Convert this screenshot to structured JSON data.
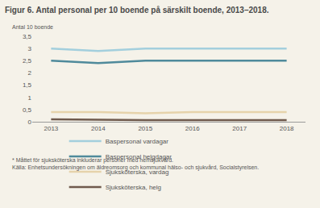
{
  "chart_data": {
    "type": "line",
    "title": "Figur 6. Antal personal per 10 boende på särskilt boende, 2013–2018.",
    "subtitle": "Antal 10 boende",
    "x": [
      2013,
      2014,
      2015,
      2016,
      2017,
      2018
    ],
    "series": [
      {
        "name": "Baspersonal vardagar",
        "color": "#a3cfdd",
        "values": [
          3.0,
          2.9,
          3.0,
          3.0,
          3.0,
          3.0
        ]
      },
      {
        "name": "Baspersonal helgdagar",
        "color": "#4f8a9b",
        "values": [
          2.5,
          2.4,
          2.5,
          2.5,
          2.5,
          2.5
        ]
      },
      {
        "name": "Sjuksköterska, vardag",
        "color": "#e6d3ab",
        "values": [
          0.4,
          0.4,
          0.35,
          0.4,
          0.4,
          0.4
        ]
      },
      {
        "name": "Sjuksköterska, helg",
        "color": "#6f5a4d",
        "values": [
          0.1,
          0.08,
          0.07,
          0.07,
          0.07,
          0.07
        ]
      }
    ],
    "xlim": [
      2012.6,
      2018.4
    ],
    "xticks": [
      2013,
      2014,
      2015,
      2016,
      2017,
      2018
    ],
    "ylim": [
      0,
      3.5
    ],
    "yticks": [
      0,
      {
        "value": 0.5,
        "label": "0,5"
      },
      1,
      {
        "value": 1.5,
        "label": "1,5"
      },
      2,
      {
        "value": 2.5,
        "label": "2,5"
      },
      3,
      {
        "value": 3.5,
        "label": "3,5"
      }
    ],
    "grid": false,
    "legend": "bottom",
    "marker": "none",
    "line_style": "solid",
    "annotations": [
      "* Måttet för sjuksköterska inkluderar personer med hemsjukvård.",
      "Källa: Enhetsundersökningen om äldreomsorg och kommunal hälso- och sjukvård, Socialstyrelsen."
    ]
  }
}
